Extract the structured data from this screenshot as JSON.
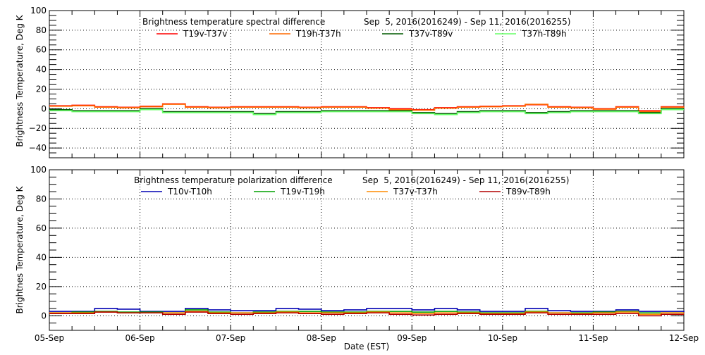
{
  "chart_data": [
    {
      "type": "line",
      "title": "Brightness temperature spectral difference",
      "subtitle": "Sep  5, 2016(2016249) - Sep 11, 2016(2016255)",
      "xlabel": "",
      "ylabel": "Brightness Temperature, Deg K",
      "ylim": [
        -50,
        100
      ],
      "yticks": [
        -40,
        -20,
        0,
        20,
        40,
        60,
        80,
        100
      ],
      "xlim": [
        0,
        7
      ],
      "xunit": "days since 05-Sep 00:00",
      "grid": true,
      "legend": "top",
      "x": [
        0,
        0.25,
        0.5,
        0.75,
        1,
        1.25,
        1.5,
        1.75,
        2,
        2.25,
        2.5,
        2.75,
        3,
        3.25,
        3.5,
        3.75,
        4,
        4.25,
        4.5,
        4.75,
        5,
        5.25,
        5.5,
        5.75,
        6,
        6.25,
        6.5,
        6.75,
        7
      ],
      "series": [
        {
          "name": "T19v-T37v",
          "color": "#ff0000",
          "values": [
            3,
            3.5,
            2,
            1.5,
            2.5,
            5,
            2,
            1.5,
            2,
            2,
            2,
            1.5,
            2,
            2,
            1,
            0,
            -1,
            1,
            2,
            2.5,
            3,
            4,
            2,
            1.5,
            0,
            2,
            -2,
            2,
            2
          ]
        },
        {
          "name": "T19h-T37h",
          "color": "#ff6a00",
          "values": [
            2.5,
            3,
            1.5,
            1,
            2,
            4.5,
            1.5,
            1,
            1.5,
            1.5,
            1.5,
            1,
            1.5,
            1.5,
            0.5,
            -1,
            -1.5,
            0.5,
            1.5,
            2,
            2.5,
            4.5,
            1.5,
            1,
            -0.5,
            1.5,
            -3,
            1.5,
            2
          ]
        },
        {
          "name": "T37v-T89v",
          "color": "#005a00",
          "values": [
            -1,
            -2,
            -2,
            -2,
            0,
            -3,
            -3,
            -3,
            -3,
            -5,
            -3,
            -3,
            -2,
            -2,
            -2,
            -2,
            -4,
            -5,
            -3,
            -2,
            -2,
            -4,
            -3,
            -2,
            -2,
            -2,
            -4,
            0,
            0
          ]
        },
        {
          "name": "T37h-T89h",
          "color": "#66ff66",
          "values": [
            -2,
            -3,
            -3,
            -3,
            -1,
            -4,
            -4,
            -4,
            -4,
            -6,
            -4,
            -4,
            -3,
            -3,
            -3,
            -3,
            -5,
            -6,
            -4,
            -3,
            -3,
            -5,
            -4,
            -3,
            -3,
            -3,
            -5,
            -1,
            -1
          ]
        }
      ]
    },
    {
      "type": "line",
      "title": "Brightness temperature polarization difference",
      "subtitle": "Sep  5, 2016(2016249) - Sep 11, 2016(2016255)",
      "xlabel": "Date (EST)",
      "ylabel": "Brightnes Temperature, Deg K",
      "ylim": [
        -10,
        100
      ],
      "yticks": [
        0,
        20,
        40,
        60,
        80,
        100
      ],
      "xlim": [
        0,
        7
      ],
      "xticklabels": [
        "05-Sep",
        "06-Sep",
        "07-Sep",
        "08-Sep",
        "09-Sep",
        "10-Sep",
        "11-Sep",
        "12-Sep"
      ],
      "grid": true,
      "legend": "top",
      "x": [
        0,
        0.25,
        0.5,
        0.75,
        1,
        1.25,
        1.5,
        1.75,
        2,
        2.25,
        2.5,
        2.75,
        3,
        3.25,
        3.5,
        3.75,
        4,
        4.25,
        4.5,
        4.75,
        5,
        5.25,
        5.5,
        5.75,
        6,
        6.25,
        6.5,
        6.75,
        7
      ],
      "series": [
        {
          "name": "T10v-T10h",
          "color": "#0000b4",
          "values": [
            3,
            3,
            5,
            4.5,
            3,
            3,
            5,
            4,
            3.5,
            3.5,
            5,
            4.5,
            3.5,
            4,
            5,
            5,
            4,
            5,
            4,
            3,
            3,
            5,
            3.5,
            3,
            3,
            4,
            3,
            3,
            2
          ]
        },
        {
          "name": "T19v-T19h",
          "color": "#00a000",
          "values": [
            2,
            2.5,
            3,
            2.5,
            2.5,
            2,
            4,
            2.5,
            2,
            2.5,
            3,
            3,
            2.5,
            2.5,
            3,
            3,
            2.5,
            3,
            2.5,
            2,
            2,
            3,
            2,
            2,
            2.5,
            3,
            2,
            2,
            2
          ]
        },
        {
          "name": "T37v-T37h",
          "color": "#ff8c00",
          "values": [
            2,
            2,
            2.5,
            2,
            2,
            2,
            3,
            2,
            2,
            2,
            2.5,
            2,
            2,
            2,
            2.5,
            2,
            1.5,
            2,
            2,
            1.5,
            1.5,
            2.5,
            2,
            1.5,
            2,
            2.5,
            1,
            2,
            1.5
          ]
        },
        {
          "name": "T89v-T89h",
          "color": "#b40000",
          "values": [
            1.5,
            1.5,
            2.5,
            2,
            2,
            1,
            2.5,
            1.5,
            1,
            1.5,
            2,
            1.5,
            1,
            1.5,
            2,
            1,
            0.5,
            1,
            1.5,
            1,
            1,
            2,
            1,
            1,
            1,
            1.5,
            0,
            1,
            1
          ]
        }
      ]
    }
  ]
}
